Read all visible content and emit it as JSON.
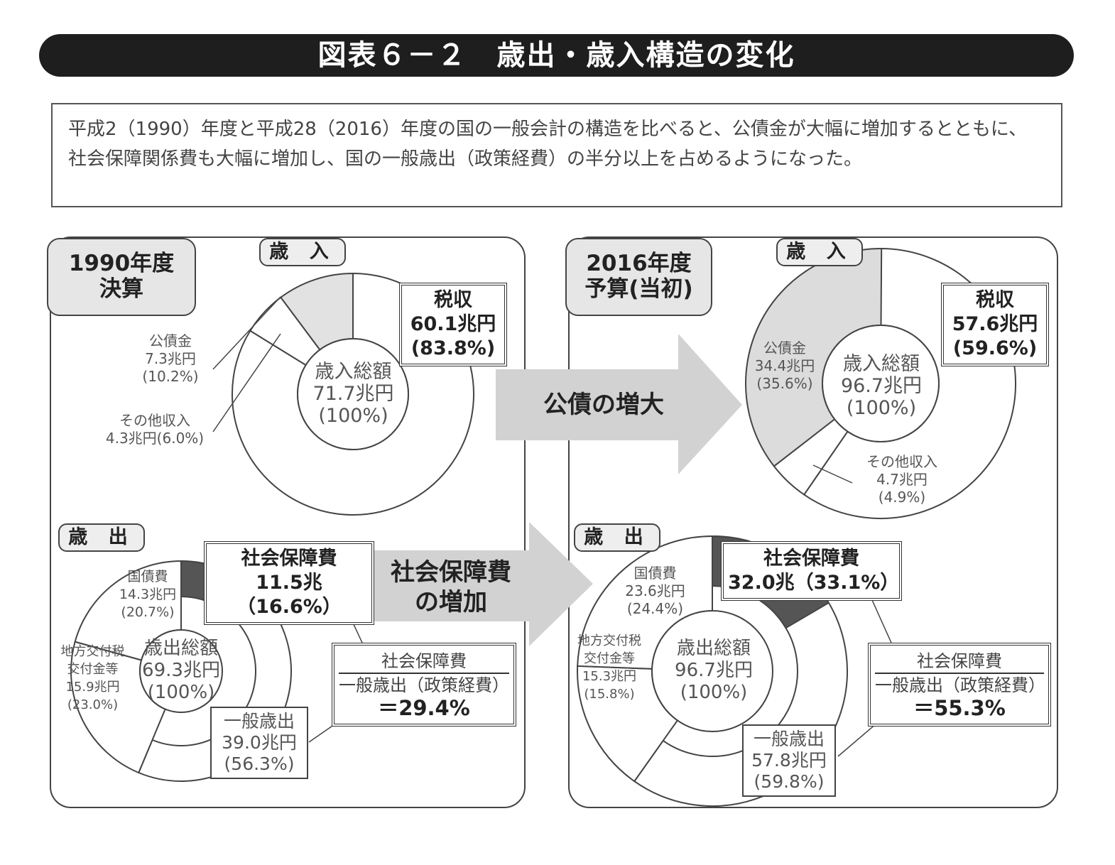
{
  "title": "図表６－２　歳出・歳入構造の変化",
  "description": "平成2（1990）年度と平成28（2016）年度の国の一般会計の構造を比べると、公債金が大幅に増加するとともに、社会保障関係費も大幅に増加し、国の一般歳出（政策経費）の半分以上を占めるようになった。",
  "arrows": {
    "bonds": "公債の増大",
    "social_line1": "社会保障費",
    "social_line2": "の増加"
  },
  "chart_data": [
    {
      "type": "pie",
      "panel": "1990年度 決算",
      "year_label": [
        "1990年度",
        "決算"
      ],
      "section": "歳 入",
      "center": [
        "歳入総額",
        "71.7兆円",
        "(100%)"
      ],
      "slices": [
        {
          "name": "税収",
          "value": 60.1,
          "percent": 83.8,
          "label": [
            "税収",
            "60.1兆円",
            "(83.8%)"
          ],
          "color": "#ffffff"
        },
        {
          "name": "その他収入",
          "value": 4.3,
          "percent": 6.0,
          "label": [
            "その他収入",
            "4.3兆円(6.0%)"
          ],
          "color": "#ffffff"
        },
        {
          "name": "公債金",
          "value": 7.3,
          "percent": 10.2,
          "label": [
            "公債金",
            "7.3兆円",
            "(10.2%)"
          ],
          "color": "#e2e2e2"
        }
      ]
    },
    {
      "type": "pie",
      "panel": "2016年度 予算(当初)",
      "year_label": [
        "2016年度",
        "予算(当初)"
      ],
      "section": "歳 入",
      "center": [
        "歳入総額",
        "96.7兆円",
        "(100%)"
      ],
      "slices": [
        {
          "name": "税収",
          "value": 57.6,
          "percent": 59.6,
          "label": [
            "税収",
            "57.6兆円",
            "(59.6%)"
          ],
          "color": "#ffffff"
        },
        {
          "name": "その他収入",
          "value": 4.7,
          "percent": 4.9,
          "label": [
            "その他収入",
            "4.7兆円",
            "(4.9%)"
          ],
          "color": "#ffffff"
        },
        {
          "name": "公債金",
          "value": 34.4,
          "percent": 35.6,
          "label": [
            "公債金",
            "34.4兆円",
            "(35.6%)"
          ],
          "color": "#dcdcdc"
        }
      ]
    },
    {
      "type": "pie",
      "section": "歳 出",
      "center": [
        "歳出総額",
        "69.3兆円",
        "(100%)"
      ],
      "slices": [
        {
          "name": "社会保障費",
          "value": 11.5,
          "percent": 16.6,
          "label": [
            "社会保障費",
            "11.5兆（16.6%）"
          ],
          "color": "#555555"
        },
        {
          "name": "一般歳出",
          "value": 39.0,
          "percent": 56.3,
          "label": [
            "一般歳出",
            "39.0兆円",
            "(56.3%)"
          ],
          "color": "#ffffff"
        },
        {
          "name": "地方交付税交付金等",
          "value": 15.9,
          "percent": 23.0,
          "label": [
            "地方交付税",
            "交付金等",
            "15.9兆円",
            "(23.0%)"
          ],
          "color": "#ffffff"
        },
        {
          "name": "国債費",
          "value": 14.3,
          "percent": 20.7,
          "label": [
            "国債費",
            "14.3兆円",
            "(20.7%)"
          ],
          "color": "#ffffff"
        }
      ],
      "ratio": {
        "numerator": "社会保障費",
        "denominator": "一般歳出（政策経費）",
        "value": "＝29.4%"
      }
    },
    {
      "type": "pie",
      "section": "歳 出",
      "center": [
        "歳出総額",
        "96.7兆円",
        "(100%)"
      ],
      "slices": [
        {
          "name": "社会保障費",
          "value": 32.0,
          "percent": 33.1,
          "label": [
            "社会保障費",
            "32.0兆（33.1%）"
          ],
          "color": "#555555"
        },
        {
          "name": "一般歳出",
          "value": 57.8,
          "percent": 59.8,
          "label": [
            "一般歳出",
            "57.8兆円",
            "(59.8%)"
          ],
          "color": "#ffffff"
        },
        {
          "name": "地方交付税交付金等",
          "value": 15.3,
          "percent": 15.8,
          "label": [
            "地方交付税",
            "交付金等",
            "15.3兆円",
            "(15.8%)"
          ],
          "color": "#ffffff"
        },
        {
          "name": "国債費",
          "value": 23.6,
          "percent": 24.4,
          "label": [
            "国債費",
            "23.6兆円",
            "(24.4%)"
          ],
          "color": "#ffffff"
        }
      ],
      "ratio": {
        "numerator": "社会保障費",
        "denominator": "一般歳出（政策経費）",
        "value": "＝55.3%"
      }
    }
  ]
}
